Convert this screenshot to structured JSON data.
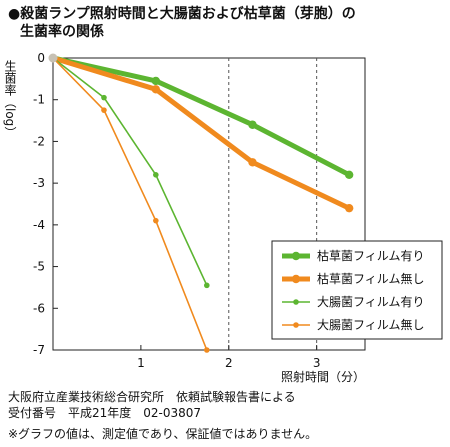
{
  "title": {
    "line1": "●殺菌ランプ照射時間と大腸菌および枯草菌（芽胞）の",
    "line2": "生菌率の関係"
  },
  "source": {
    "line1": "大阪府立産業技術総合研究所　依頼試験報告書による",
    "line2": "受付番号　平成21年度　02-03807"
  },
  "note": "※グラフの値は、測定値であり、保証値ではありません。",
  "chart_data": {
    "type": "line",
    "title": "殺菌ランプ照射時間と大腸菌および枯草菌（芽胞）の生菌率の関係",
    "xlabel": "照射時間（分）",
    "ylabel": "生菌率（log）",
    "xlim": [
      0,
      3.2
    ],
    "ylim": [
      -7,
      0
    ],
    "xticks": [
      1,
      2,
      3
    ],
    "yticks": [
      0,
      -1,
      -2,
      -3,
      -4,
      -5,
      -6,
      -7
    ],
    "ytick_labels": [
      "0",
      "-1",
      "-2",
      "-3",
      "-4",
      "-5",
      "-6",
      "-7"
    ],
    "grid": "dashed vertical lines at x=2 and x=3",
    "legend": "bottom-right",
    "series": [
      {
        "name": "枯草菌フィルム有り",
        "color": "#5cb531",
        "width": "thick",
        "x": [
          0,
          1.17,
          2.27,
          3.37
        ],
        "y": [
          0,
          -0.55,
          -1.6,
          -2.8
        ]
      },
      {
        "name": "枯草菌フィルム無し",
        "color": "#f08a1e",
        "width": "thick",
        "x": [
          0,
          1.17,
          2.27,
          3.37
        ],
        "y": [
          0,
          -0.75,
          -2.5,
          -3.6
        ]
      },
      {
        "name": "大腸菌フィルム有り",
        "color": "#5cb531",
        "width": "thin",
        "x": [
          0,
          0.58,
          1.17,
          1.75
        ],
        "y": [
          0,
          -0.95,
          -2.8,
          -5.45
        ]
      },
      {
        "name": "大腸菌フィルム無し",
        "color": "#f08a1e",
        "width": "thin",
        "x": [
          0,
          0.58,
          1.17,
          1.75
        ],
        "y": [
          0,
          -1.25,
          -3.9,
          -7.0
        ]
      }
    ]
  }
}
